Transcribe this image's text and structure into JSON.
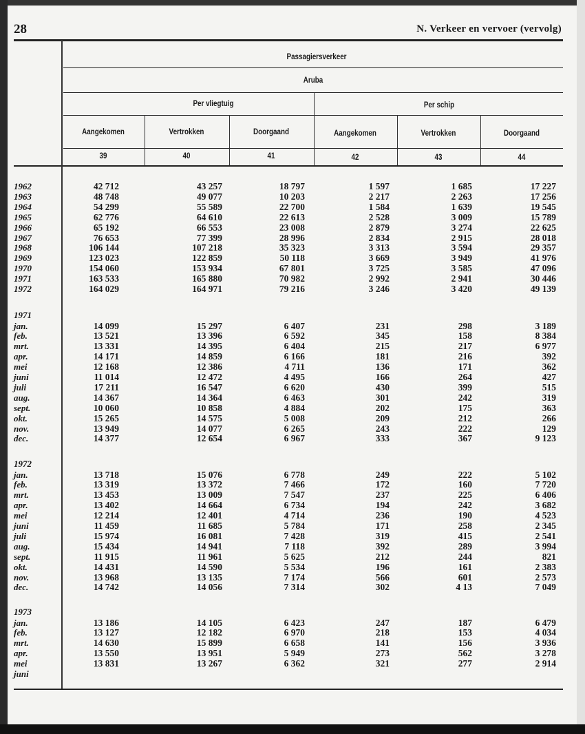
{
  "page_number": "28",
  "running_head": "N. Verkeer en vervoer (vervolg)",
  "header": {
    "title": "Passagiersverkeer",
    "region": "Aruba",
    "groups": [
      "Per vliegtuig",
      "Per schip"
    ],
    "columns": [
      "Aangekomen",
      "Vertrokken",
      "Doorgaand",
      "Aangekomen",
      "Vertrokken",
      "Doorgaand"
    ],
    "column_numbers": [
      "39",
      "40",
      "41",
      "42",
      "43",
      "44"
    ]
  },
  "sections": [
    {
      "label": "",
      "rows": [
        {
          "label": "1962",
          "values": [
            "42 712",
            "43 257",
            "18 797",
            "1 597",
            "1 685",
            "17 227"
          ]
        },
        {
          "label": "1963",
          "values": [
            "48 748",
            "49 077",
            "10 203",
            "2 217",
            "2 263",
            "17 256"
          ]
        },
        {
          "label": "1964",
          "values": [
            "54 299",
            "55 589",
            "22 700",
            "1 584",
            "1 639",
            "19 545"
          ]
        },
        {
          "label": "1965",
          "values": [
            "62 776",
            "64 610",
            "22 613",
            "2 528",
            "3 009",
            "15 789"
          ]
        },
        {
          "label": "1966",
          "values": [
            "65 192",
            "66 553",
            "23 008",
            "2 879",
            "3 274",
            "22 625"
          ]
        },
        {
          "label": "1967",
          "values": [
            "76 653",
            "77 399",
            "28 996",
            "2 834",
            "2 915",
            "28 018"
          ]
        },
        {
          "label": "1968",
          "values": [
            "106 144",
            "107 218",
            "35 323",
            "3 313",
            "3 594",
            "29 357"
          ]
        },
        {
          "label": "1969",
          "values": [
            "123 023",
            "122 859",
            "50 118",
            "3 669",
            "3 949",
            "41 976"
          ]
        },
        {
          "label": "1970",
          "values": [
            "154 060",
            "153 934",
            "67 801",
            "3 725",
            "3 585",
            "47 096"
          ]
        },
        {
          "label": "1971",
          "values": [
            "163 533",
            "165 880",
            "70 982",
            "2 992",
            "2 941",
            "30 446"
          ]
        },
        {
          "label": "1972",
          "values": [
            "164 029",
            "164 971",
            "79 216",
            "3 246",
            "3 420",
            "49 139"
          ]
        }
      ]
    },
    {
      "label": "1971",
      "rows": [
        {
          "label": "jan.",
          "values": [
            "14 099",
            "15 297",
            "6 407",
            "231",
            "298",
            "3 189"
          ]
        },
        {
          "label": "feb.",
          "values": [
            "13 521",
            "13 396",
            "6 592",
            "345",
            "158",
            "8 384"
          ]
        },
        {
          "label": "mrt.",
          "values": [
            "13 331",
            "14 395",
            "6 404",
            "215",
            "217",
            "6 977"
          ]
        },
        {
          "label": "apr.",
          "values": [
            "14 171",
            "14 859",
            "6 166",
            "181",
            "216",
            "392"
          ]
        },
        {
          "label": "mei",
          "values": [
            "12 168",
            "12 386",
            "4 711",
            "136",
            "171",
            "362"
          ]
        },
        {
          "label": "juni",
          "values": [
            "11 014",
            "12 472",
            "4 495",
            "166",
            "264",
            "427"
          ]
        },
        {
          "label": "juli",
          "values": [
            "17 211",
            "16 547",
            "6 620",
            "430",
            "399",
            "515"
          ]
        },
        {
          "label": "aug.",
          "values": [
            "14 367",
            "14 364",
            "6 463",
            "301",
            "242",
            "319"
          ]
        },
        {
          "label": "sept.",
          "values": [
            "10 060",
            "10 858",
            "4 884",
            "202",
            "175",
            "363"
          ]
        },
        {
          "label": "okt.",
          "values": [
            "15 265",
            "14 575",
            "5 008",
            "209",
            "212",
            "266"
          ]
        },
        {
          "label": "nov.",
          "values": [
            "13 949",
            "14 077",
            "6 265",
            "243",
            "222",
            "129"
          ]
        },
        {
          "label": "dec.",
          "values": [
            "14 377",
            "12 654",
            "6 967",
            "333",
            "367",
            "9 123"
          ]
        }
      ]
    },
    {
      "label": "1972",
      "rows": [
        {
          "label": "jan.",
          "values": [
            "13 718",
            "15 076",
            "6 778",
            "249",
            "222",
            "5 102"
          ]
        },
        {
          "label": "feb.",
          "values": [
            "13 319",
            "13 372",
            "7 466",
            "172",
            "160",
            "7 720"
          ]
        },
        {
          "label": "mrt.",
          "values": [
            "13 453",
            "13 009",
            "7 547",
            "237",
            "225",
            "6 406"
          ]
        },
        {
          "label": "apr.",
          "values": [
            "13 402",
            "14 664",
            "6 734",
            "194",
            "242",
            "3 682"
          ]
        },
        {
          "label": "mei",
          "values": [
            "12 214",
            "12 401",
            "4 714",
            "236",
            "190",
            "4 523"
          ]
        },
        {
          "label": "juni",
          "values": [
            "11 459",
            "11 685",
            "5 784",
            "171",
            "258",
            "2 345"
          ]
        },
        {
          "label": "juli",
          "values": [
            "15 974",
            "16 081",
            "7 428",
            "319",
            "415",
            "2 541"
          ]
        },
        {
          "label": "aug.",
          "values": [
            "15 434",
            "14 941",
            "7 118",
            "392",
            "289",
            "3 994"
          ]
        },
        {
          "label": "sept.",
          "values": [
            "11 915",
            "11 961",
            "5 625",
            "212",
            "244",
            "821"
          ]
        },
        {
          "label": "okt.",
          "values": [
            "14 431",
            "14 590",
            "5 534",
            "196",
            "161",
            "2 383"
          ]
        },
        {
          "label": "nov.",
          "values": [
            "13 968",
            "13 135",
            "7 174",
            "566",
            "601",
            "2 573"
          ]
        },
        {
          "label": "dec.",
          "values": [
            "14 742",
            "14 056",
            "7 314",
            "302",
            "4 13",
            "7 049"
          ]
        }
      ]
    },
    {
      "label": "1973",
      "rows": [
        {
          "label": "jan.",
          "values": [
            "13 186",
            "14 105",
            "6 423",
            "247",
            "187",
            "6 479"
          ]
        },
        {
          "label": "feb.",
          "values": [
            "13 127",
            "12 182",
            "6 970",
            "218",
            "153",
            "4 034"
          ]
        },
        {
          "label": "mrt.",
          "values": [
            "14 630",
            "15 899",
            "6 658",
            "141",
            "156",
            "3 936"
          ]
        },
        {
          "label": "apr.",
          "values": [
            "13 550",
            "13 951",
            "5 949",
            "273",
            "562",
            "3 278"
          ]
        },
        {
          "label": "mei",
          "values": [
            "13 831",
            "13 267",
            "6 362",
            "321",
            "277",
            "2 914"
          ]
        },
        {
          "label": "juni",
          "values": [
            "",
            "",
            "",
            "",
            "",
            ""
          ]
        }
      ]
    }
  ]
}
